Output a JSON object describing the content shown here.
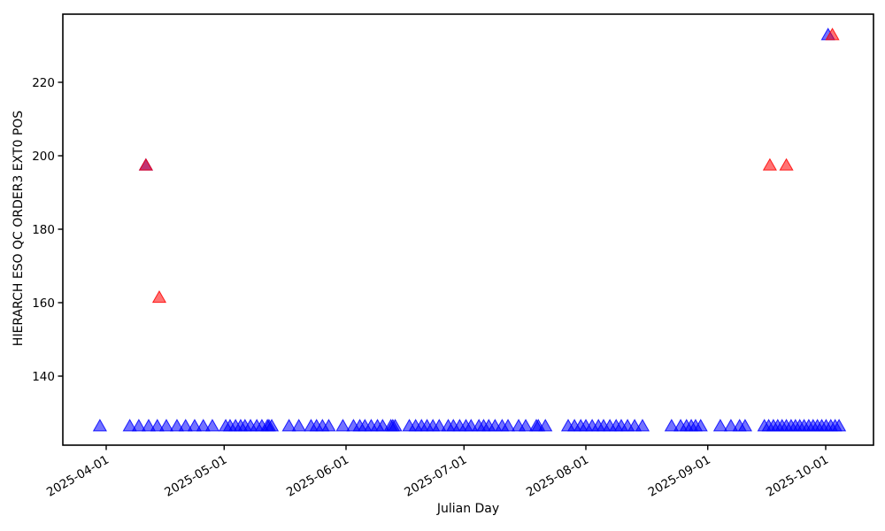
{
  "chart_data": {
    "type": "scatter",
    "marker": "triangle-up",
    "title": "",
    "xlabel": "Julian Day",
    "ylabel": "HIERARCH ESO QC ORDER3 EXT0 POS",
    "x_unit": "days since 2025-04-01",
    "grid": false,
    "legend": "none",
    "axis_color": "#000000",
    "background": "#ffffff",
    "xlim_days": [
      -11.0,
      195.2
    ],
    "ylim": [
      121.2,
      238.6
    ],
    "x_ticks": [
      {
        "day": 0,
        "label": "2025-04-01"
      },
      {
        "day": 30,
        "label": "2025-05-01"
      },
      {
        "day": 61,
        "label": "2025-06-01"
      },
      {
        "day": 91,
        "label": "2025-07-01"
      },
      {
        "day": 122,
        "label": "2025-08-01"
      },
      {
        "day": 153,
        "label": "2025-09-01"
      },
      {
        "day": 183,
        "label": "2025-10-01"
      }
    ],
    "y_ticks": [
      140,
      160,
      180,
      200,
      220
    ],
    "series": [
      {
        "name": "blue-points",
        "color": "#0000ff",
        "opacity": 0.55,
        "points": [
          [
            -1.6,
            126.5
          ],
          [
            6.0,
            126.5
          ],
          [
            8.3,
            126.5
          ],
          [
            10.8,
            126.5
          ],
          [
            13.0,
            126.5
          ],
          [
            15.3,
            126.5
          ],
          [
            18.0,
            126.5
          ],
          [
            20.2,
            126.5
          ],
          [
            22.5,
            126.5
          ],
          [
            24.7,
            126.5
          ],
          [
            27.0,
            126.5
          ],
          [
            30.4,
            126.5
          ],
          [
            31.5,
            126.5
          ],
          [
            32.9,
            126.5
          ],
          [
            34.2,
            126.5
          ],
          [
            35.3,
            126.5
          ],
          [
            36.7,
            126.5
          ],
          [
            38.3,
            126.5
          ],
          [
            39.6,
            126.5
          ],
          [
            41.0,
            126.5
          ],
          [
            41.4,
            126.5
          ],
          [
            42.1,
            126.5
          ],
          [
            46.5,
            126.5
          ],
          [
            49.0,
            126.5
          ],
          [
            52.1,
            126.5
          ],
          [
            53.5,
            126.5
          ],
          [
            55.0,
            126.5
          ],
          [
            56.6,
            126.5
          ],
          [
            60.2,
            126.5
          ],
          [
            62.9,
            126.5
          ],
          [
            64.5,
            126.5
          ],
          [
            65.8,
            126.5
          ],
          [
            67.4,
            126.5
          ],
          [
            69.0,
            126.5
          ],
          [
            70.3,
            126.5
          ],
          [
            72.4,
            126.5
          ],
          [
            72.9,
            126.5
          ],
          [
            73.5,
            126.5
          ],
          [
            77.1,
            126.5
          ],
          [
            78.7,
            126.5
          ],
          [
            80.2,
            126.5
          ],
          [
            81.6,
            126.5
          ],
          [
            83.1,
            126.5
          ],
          [
            84.7,
            126.5
          ],
          [
            87.0,
            126.5
          ],
          [
            88.3,
            126.5
          ],
          [
            89.9,
            126.5
          ],
          [
            91.5,
            126.5
          ],
          [
            92.8,
            126.5
          ],
          [
            94.8,
            126.5
          ],
          [
            96.0,
            126.5
          ],
          [
            97.3,
            126.5
          ],
          [
            98.9,
            126.5
          ],
          [
            100.7,
            126.5
          ],
          [
            102.2,
            126.5
          ],
          [
            104.9,
            126.5
          ],
          [
            106.7,
            126.5
          ],
          [
            109.4,
            126.5
          ],
          [
            109.9,
            126.5
          ],
          [
            111.7,
            126.5
          ],
          [
            117.5,
            126.5
          ],
          [
            119.1,
            126.5
          ],
          [
            120.7,
            126.5
          ],
          [
            122.0,
            126.5
          ],
          [
            123.6,
            126.5
          ],
          [
            125.2,
            126.5
          ],
          [
            126.5,
            126.5
          ],
          [
            128.1,
            126.5
          ],
          [
            129.7,
            126.5
          ],
          [
            131.0,
            126.5
          ],
          [
            132.6,
            126.5
          ],
          [
            134.4,
            126.5
          ],
          [
            136.4,
            126.5
          ],
          [
            143.8,
            126.5
          ],
          [
            146.1,
            126.5
          ],
          [
            147.6,
            126.5
          ],
          [
            148.8,
            126.5
          ],
          [
            149.9,
            126.5
          ],
          [
            151.2,
            126.5
          ],
          [
            156.2,
            126.5
          ],
          [
            158.9,
            126.5
          ],
          [
            161.1,
            126.5
          ],
          [
            162.5,
            126.5
          ],
          [
            167.4,
            126.5
          ],
          [
            168.5,
            126.5
          ],
          [
            169.7,
            126.5
          ],
          [
            170.8,
            126.5
          ],
          [
            171.9,
            126.5
          ],
          [
            173.0,
            126.5
          ],
          [
            174.2,
            126.5
          ],
          [
            175.3,
            126.5
          ],
          [
            176.4,
            126.5
          ],
          [
            177.5,
            126.5
          ],
          [
            178.7,
            126.5
          ],
          [
            179.8,
            126.5
          ],
          [
            180.9,
            126.5
          ],
          [
            182.0,
            126.5
          ],
          [
            183.1,
            126.5
          ],
          [
            184.3,
            126.5
          ],
          [
            185.4,
            126.5
          ],
          [
            186.4,
            126.5
          ],
          [
            10.1,
            197.5
          ],
          [
            183.6,
            233.0
          ]
        ]
      },
      {
        "name": "red-points",
        "color": "#ff0000",
        "opacity": 0.55,
        "points": [
          [
            10.1,
            197.5
          ],
          [
            13.5,
            161.5
          ],
          [
            168.8,
            197.5
          ],
          [
            173.0,
            197.5
          ],
          [
            184.7,
            233.0
          ]
        ]
      }
    ]
  }
}
